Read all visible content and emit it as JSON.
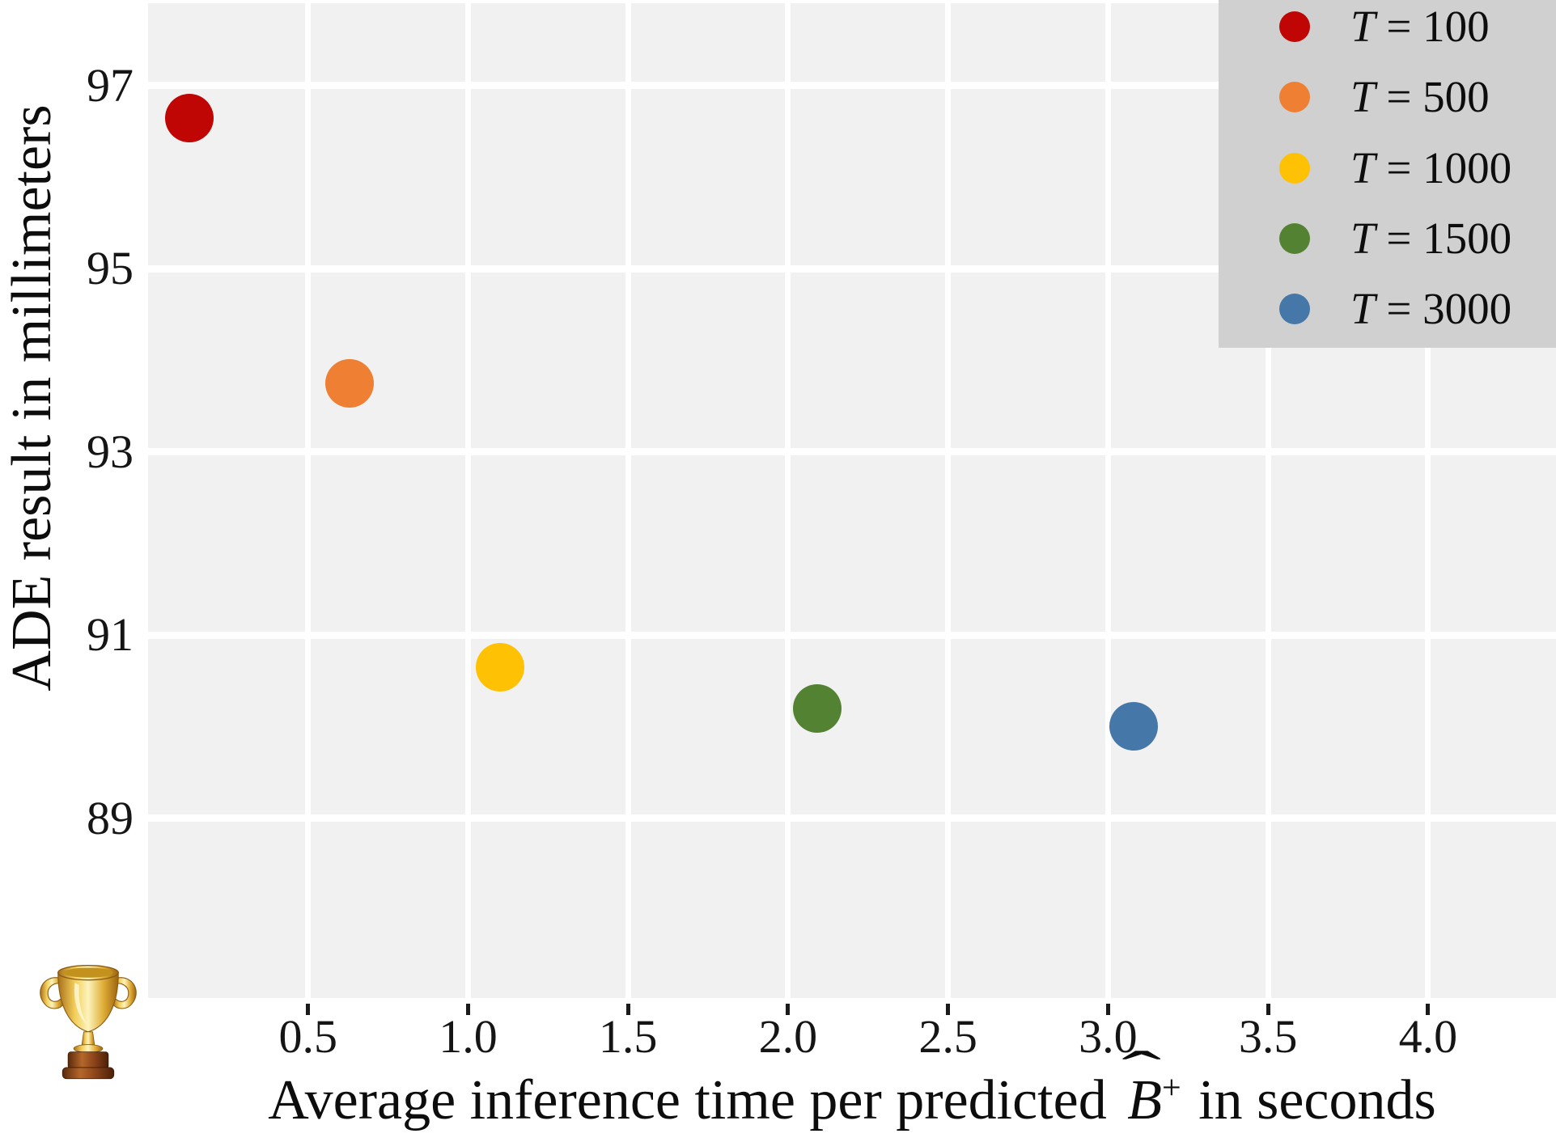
{
  "figure": {
    "background": "#ffffff",
    "plot_background": "#f1f1f1",
    "gridline_color": "#ffffff",
    "legend_background": "#d0d0d0",
    "tick_color": "#1a1a1a"
  },
  "icons": {
    "bottom_left": "trophy-icon"
  },
  "chart_data": {
    "type": "scatter",
    "title": "",
    "ylabel": "ADE result in millimeters",
    "xlabel": {
      "prefix": "Average inference time per predicted",
      "math_base": "B",
      "math_accent": "ˆ",
      "math_sup": "+",
      "suffix": "in seconds"
    },
    "xlim": [
      0,
      4.4
    ],
    "ylim": [
      87,
      97.9
    ],
    "grid": true,
    "legend_position": "upper right",
    "x_tick_values": [
      0.5,
      1.0,
      1.5,
      2.0,
      2.5,
      3.0,
      3.5,
      4.0
    ],
    "x_tick_labels": [
      "0.5",
      "1.0",
      "1.5",
      "2.0",
      "2.5",
      "3.0",
      "3.5",
      "4.0"
    ],
    "y_tick_values": [
      97,
      95,
      93,
      91,
      89
    ],
    "y_tick_labels": [
      "97",
      "95",
      "93",
      "91",
      "89"
    ],
    "h_gridline_values": [
      97,
      95,
      93,
      91,
      89,
      87
    ],
    "series": [
      {
        "name": "T = 100",
        "T": 100,
        "x": 0.13,
        "y": 96.65,
        "color": "#c00505"
      },
      {
        "name": "T = 500",
        "T": 500,
        "x": 0.63,
        "y": 93.75,
        "color": "#ee7f33"
      },
      {
        "name": "T = 1000",
        "T": 1000,
        "x": 1.1,
        "y": 90.65,
        "color": "#ffc104"
      },
      {
        "name": "T = 1500",
        "T": 1500,
        "x": 2.09,
        "y": 90.2,
        "color": "#538233"
      },
      {
        "name": "T = 3000",
        "T": 3000,
        "x": 3.08,
        "y": 90.0,
        "color": "#4577a8"
      }
    ]
  }
}
